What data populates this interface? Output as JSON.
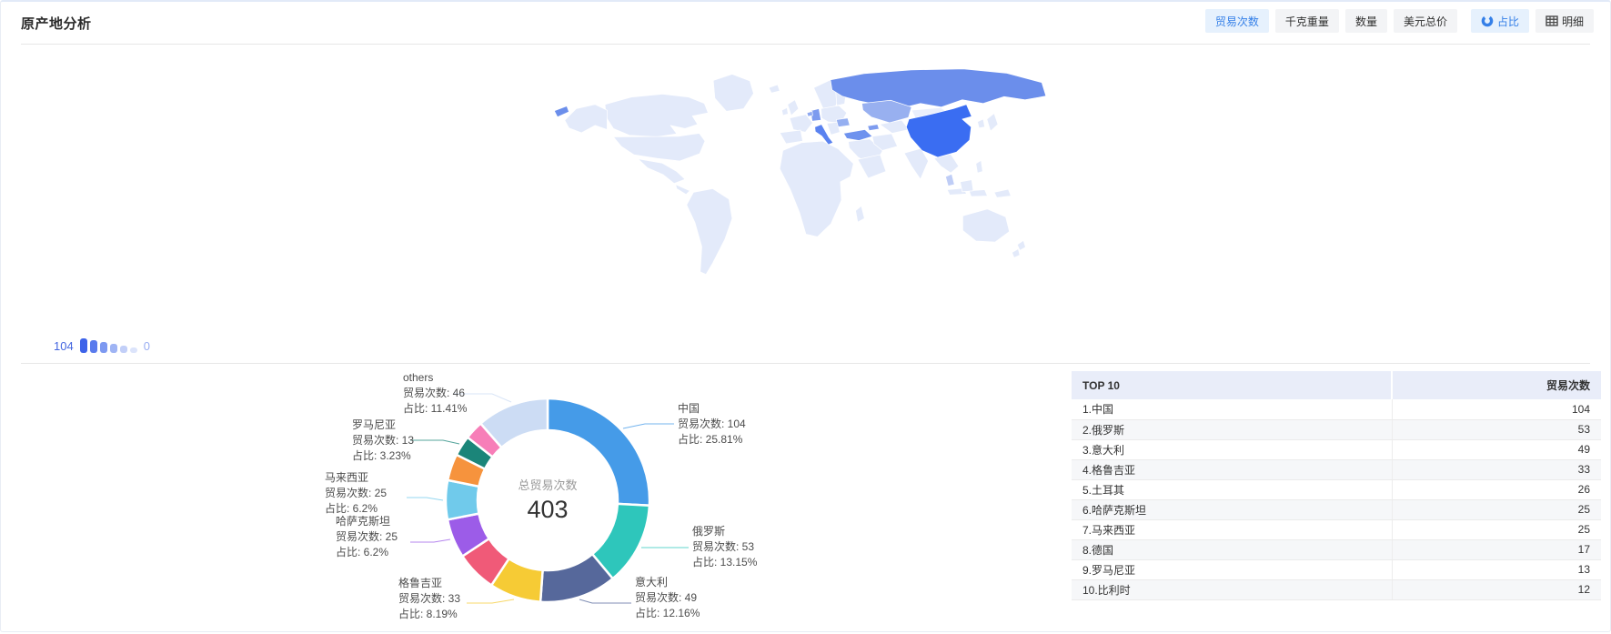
{
  "header": {
    "title": "原产地分析",
    "metric_buttons": [
      {
        "label": "贸易次数",
        "active": true
      },
      {
        "label": "千克重量",
        "active": false
      },
      {
        "label": "数量",
        "active": false
      },
      {
        "label": "美元总价",
        "active": false
      }
    ],
    "view_buttons": [
      {
        "label": "占比",
        "icon": "donut-chart-icon",
        "active": true
      },
      {
        "label": "明细",
        "icon": "table-icon",
        "active": false
      }
    ]
  },
  "map_legend": {
    "max": "104",
    "min": "0"
  },
  "chart_data": [
    {
      "type": "heatmap",
      "subtype": "choropleth-world-map",
      "metric": "贸易次数",
      "range": [
        0,
        104
      ],
      "countries": [
        {
          "name": "中国",
          "value": 104
        },
        {
          "name": "俄罗斯",
          "value": 53
        },
        {
          "name": "意大利",
          "value": 49
        },
        {
          "name": "格鲁吉亚",
          "value": 33
        },
        {
          "name": "土耳其",
          "value": 26
        },
        {
          "name": "哈萨克斯坦",
          "value": 25
        },
        {
          "name": "马来西亚",
          "value": 25
        },
        {
          "name": "德国",
          "value": 17
        },
        {
          "name": "罗马尼亚",
          "value": 13
        },
        {
          "name": "比利时",
          "value": 12
        }
      ]
    },
    {
      "type": "pie",
      "subtype": "donut",
      "center_label": "总贸易次数",
      "total": 403,
      "metric": "贸易次数",
      "label_count_prefix": "贸易次数: ",
      "label_percent_prefix": "占比: ",
      "segments": [
        {
          "name": "中国",
          "value": 104,
          "percent": "25.81%",
          "color": "#459BE8",
          "labeled": true
        },
        {
          "name": "俄罗斯",
          "value": 53,
          "percent": "13.15%",
          "color": "#2EC6BB",
          "labeled": true
        },
        {
          "name": "意大利",
          "value": 49,
          "percent": "12.16%",
          "color": "#56689B",
          "labeled": true
        },
        {
          "name": "格鲁吉亚",
          "value": 33,
          "percent": "8.19%",
          "color": "#F6CB35",
          "labeled": true
        },
        {
          "name": "土耳其",
          "value": 26,
          "percent": null,
          "color": "#F05A78",
          "labeled": false
        },
        {
          "name": "哈萨克斯坦",
          "value": 25,
          "percent": "6.2%",
          "color": "#9C5CE8",
          "labeled": true
        },
        {
          "name": "马来西亚",
          "value": 25,
          "percent": "6.2%",
          "color": "#70CAEB",
          "labeled": true
        },
        {
          "name": "德国",
          "value": 17,
          "percent": null,
          "color": "#F6933D",
          "labeled": false
        },
        {
          "name": "罗马尼亚",
          "value": 13,
          "percent": "3.23%",
          "color": "#1B8579",
          "labeled": true
        },
        {
          "name": "比利时",
          "value": 12,
          "percent": null,
          "color": "#F77EB8",
          "labeled": false
        },
        {
          "name": "others",
          "value": 46,
          "percent": "11.41%",
          "color": "#CCDCF4",
          "labeled": true
        }
      ]
    },
    {
      "type": "table",
      "columns": [
        "TOP 10",
        "贸易次数"
      ],
      "rows": [
        [
          "1.中国",
          104
        ],
        [
          "2.俄罗斯",
          53
        ],
        [
          "3.意大利",
          49
        ],
        [
          "4.格鲁吉亚",
          33
        ],
        [
          "5.土耳其",
          26
        ],
        [
          "6.哈萨克斯坦",
          25
        ],
        [
          "7.马来西亚",
          25
        ],
        [
          "8.德国",
          17
        ],
        [
          "9.罗马尼亚",
          13
        ],
        [
          "10.比利时",
          12
        ]
      ]
    }
  ]
}
